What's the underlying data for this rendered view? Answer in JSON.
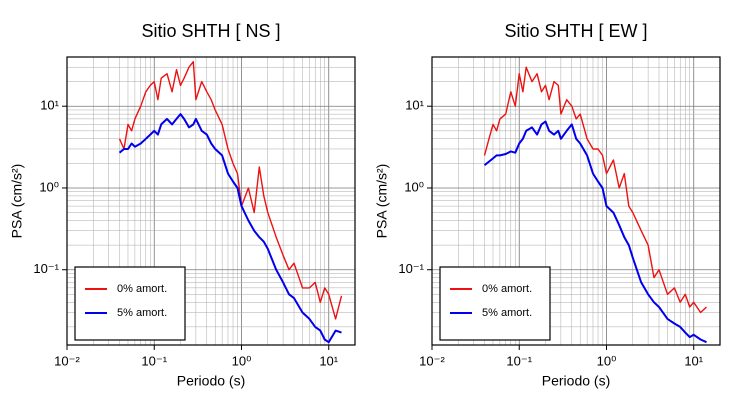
{
  "chart_data": [
    {
      "type": "line",
      "title": "Sitio SHTH [ NS ]",
      "xlabel": "Periodo (s)",
      "ylabel": "PSA (cm/s²)",
      "log_x": true,
      "log_y": true,
      "grid": true,
      "legend": "lower left",
      "xlim": [
        0.01,
        20
      ],
      "ylim": [
        0.012,
        40
      ],
      "xticks": [
        {
          "value": 0.01,
          "label": "10⁻²"
        },
        {
          "value": 0.1,
          "label": "10⁻¹"
        },
        {
          "value": 1,
          "label": "10⁰"
        },
        {
          "value": 10,
          "label": "10¹"
        }
      ],
      "yticks": [
        {
          "value": 0.1,
          "label": "10⁻¹"
        },
        {
          "value": 1,
          "label": "10⁰"
        },
        {
          "value": 10,
          "label": "10¹"
        }
      ],
      "x": [
        0.04,
        0.045,
        0.05,
        0.055,
        0.06,
        0.07,
        0.08,
        0.09,
        0.1,
        0.11,
        0.12,
        0.14,
        0.16,
        0.18,
        0.2,
        0.22,
        0.25,
        0.28,
        0.3,
        0.35,
        0.4,
        0.45,
        0.5,
        0.6,
        0.7,
        0.8,
        0.9,
        1,
        1.2,
        1.4,
        1.6,
        1.8,
        2,
        2.5,
        3,
        3.5,
        4,
        5,
        6,
        7,
        8,
        9,
        10,
        12,
        14
      ],
      "series": [
        {
          "name": "0% amort.",
          "color": "#ee1111",
          "values": [
            4,
            3,
            6,
            5,
            7,
            10,
            15,
            18,
            20,
            12,
            22,
            25,
            15,
            28,
            18,
            22,
            30,
            35,
            12,
            20,
            15,
            12,
            9,
            6,
            3,
            2,
            1.5,
            0.6,
            1,
            0.5,
            1.8,
            0.8,
            0.5,
            0.25,
            0.15,
            0.1,
            0.12,
            0.06,
            0.06,
            0.07,
            0.04,
            0.06,
            0.05,
            0.025,
            0.048
          ]
        },
        {
          "name": "5% amort.",
          "color": "#0000ee",
          "values": [
            2.7,
            3,
            3,
            3.5,
            3.2,
            3.5,
            4,
            4.5,
            5,
            4.5,
            6,
            7,
            6,
            7,
            8,
            7,
            5.5,
            6,
            7,
            5,
            4.5,
            3.5,
            3,
            2.5,
            1.5,
            1.2,
            1,
            0.6,
            0.4,
            0.3,
            0.25,
            0.22,
            0.18,
            0.1,
            0.07,
            0.05,
            0.045,
            0.03,
            0.025,
            0.02,
            0.018,
            0.014,
            0.013,
            0.018,
            0.017
          ]
        }
      ]
    },
    {
      "type": "line",
      "title": "Sitio SHTH [ EW ]",
      "xlabel": "Periodo (s)",
      "ylabel": "PSA (cm/s²)",
      "log_x": true,
      "log_y": true,
      "grid": true,
      "legend": "lower left",
      "xlim": [
        0.01,
        20
      ],
      "ylim": [
        0.012,
        40
      ],
      "xticks": [
        {
          "value": 0.01,
          "label": "10⁻²"
        },
        {
          "value": 0.1,
          "label": "10⁻¹"
        },
        {
          "value": 1,
          "label": "10⁰"
        },
        {
          "value": 10,
          "label": "10¹"
        }
      ],
      "yticks": [
        {
          "value": 0.1,
          "label": "10⁻¹"
        },
        {
          "value": 1,
          "label": "10⁰"
        },
        {
          "value": 10,
          "label": "10¹"
        }
      ],
      "x": [
        0.04,
        0.045,
        0.05,
        0.055,
        0.06,
        0.07,
        0.08,
        0.09,
        0.1,
        0.11,
        0.12,
        0.14,
        0.16,
        0.18,
        0.2,
        0.22,
        0.25,
        0.28,
        0.3,
        0.35,
        0.4,
        0.45,
        0.5,
        0.6,
        0.7,
        0.8,
        0.9,
        1,
        1.2,
        1.4,
        1.6,
        1.8,
        2,
        2.5,
        3,
        3.5,
        4,
        5,
        6,
        7,
        8,
        9,
        10,
        12,
        14
      ],
      "series": [
        {
          "name": "0% amort.",
          "color": "#ee1111",
          "values": [
            2.5,
            4,
            6,
            5,
            7,
            8,
            15,
            10,
            25,
            15,
            30,
            20,
            25,
            15,
            18,
            12,
            20,
            18,
            8,
            12,
            10,
            7,
            8,
            4,
            3,
            3,
            2.5,
            1.5,
            2.2,
            1,
            1.5,
            0.6,
            0.5,
            0.3,
            0.2,
            0.08,
            0.1,
            0.05,
            0.06,
            0.04,
            0.05,
            0.035,
            0.04,
            0.03,
            0.035
          ]
        },
        {
          "name": "5% amort.",
          "color": "#0000ee",
          "values": [
            1.9,
            2.1,
            2.3,
            2.5,
            2.5,
            2.6,
            2.8,
            2.7,
            3.5,
            4,
            5,
            5.5,
            4.5,
            6,
            6.5,
            5,
            4.5,
            5,
            4,
            5,
            6,
            4,
            3.5,
            2.5,
            1.5,
            1.2,
            1,
            0.6,
            0.5,
            0.35,
            0.25,
            0.2,
            0.14,
            0.07,
            0.05,
            0.04,
            0.035,
            0.025,
            0.022,
            0.02,
            0.017,
            0.015,
            0.016,
            0.014,
            0.013
          ]
        }
      ]
    }
  ]
}
